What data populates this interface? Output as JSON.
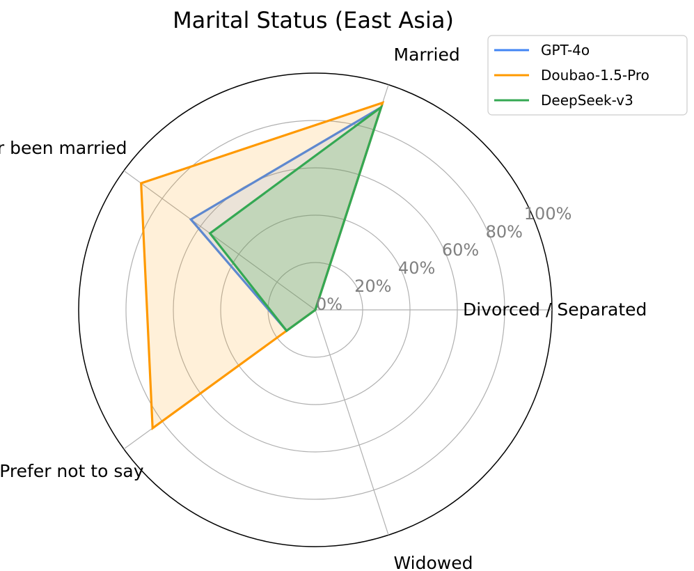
{
  "chart_data": {
    "type": "radar",
    "title": "Marital Status (East Asia)",
    "categories": [
      "Divorced / Separated",
      "Married",
      "Never been married",
      "Prefer not to say",
      "Widowed"
    ],
    "category_angles_deg": [
      0,
      72,
      144,
      216,
      288
    ],
    "rlim": [
      0,
      100
    ],
    "rticks": [
      0,
      20,
      40,
      60,
      80,
      100
    ],
    "rtick_labels": [
      "0%",
      "20%",
      "40%",
      "60%",
      "80%",
      "100%"
    ],
    "grid": true,
    "legend_position": "top-right",
    "series": [
      {
        "name": "GPT-4o",
        "color": "#4285f4",
        "fill_opacity": 0.12,
        "values": [
          0,
          90,
          65,
          15,
          0
        ]
      },
      {
        "name": "Doubao-1.5-Pro",
        "color": "#ff9900",
        "fill_opacity": 0.15,
        "values": [
          0,
          92,
          91,
          85,
          0
        ]
      },
      {
        "name": "DeepSeek-v3",
        "color": "#34a853",
        "fill_opacity": 0.22,
        "values": [
          0,
          90,
          55,
          15,
          0
        ]
      }
    ]
  }
}
